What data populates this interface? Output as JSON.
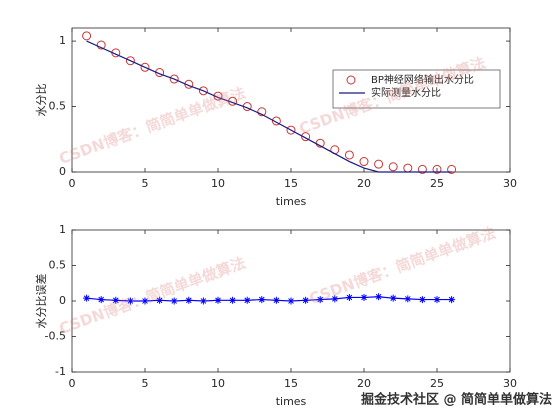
{
  "chart_data": [
    {
      "type": "line",
      "xlabel": "times",
      "ylabel": "水分比",
      "xlim": [
        0,
        30
      ],
      "xticks": [
        0,
        5,
        10,
        15,
        20,
        25,
        30
      ],
      "ylim": [
        0,
        1.1
      ],
      "yticks": [
        0,
        0.5,
        1
      ],
      "grid": false,
      "legend": "northeast",
      "x": [
        1,
        2,
        3,
        4,
        5,
        6,
        7,
        8,
        9,
        10,
        11,
        12,
        13,
        14,
        15,
        16,
        17,
        18,
        19,
        20,
        21,
        22,
        23,
        24,
        25,
        26
      ],
      "series": [
        {
          "name": "BP神经网络输出水分比",
          "color": "#cc3333",
          "style": "circle",
          "values": [
            1.04,
            0.97,
            0.91,
            0.85,
            0.8,
            0.76,
            0.71,
            0.67,
            0.62,
            0.58,
            0.54,
            0.5,
            0.46,
            0.39,
            0.32,
            0.27,
            0.22,
            0.17,
            0.13,
            0.08,
            0.06,
            0.04,
            0.03,
            0.02,
            0.02,
            0.02
          ]
        },
        {
          "name": "实际测量水分比",
          "color": "#1a1a80",
          "style": "line",
          "values": [
            1.0,
            0.95,
            0.9,
            0.85,
            0.8,
            0.75,
            0.71,
            0.66,
            0.62,
            0.57,
            0.53,
            0.49,
            0.44,
            0.38,
            0.32,
            0.26,
            0.2,
            0.14,
            0.08,
            0.03,
            0.0,
            0.0,
            0.0,
            0.0,
            0.0,
            0.0
          ]
        }
      ]
    },
    {
      "type": "line",
      "xlabel": "times",
      "ylabel": "水分比误差",
      "xlim": [
        0,
        30
      ],
      "xticks": [
        0,
        5,
        10,
        15,
        20,
        25,
        30
      ],
      "ylim": [
        -1,
        1
      ],
      "yticks": [
        -1,
        -0.5,
        0,
        0.5,
        1
      ],
      "grid": false,
      "x": [
        1,
        2,
        3,
        4,
        5,
        6,
        7,
        8,
        9,
        10,
        11,
        12,
        13,
        14,
        15,
        16,
        17,
        18,
        19,
        20,
        21,
        22,
        23,
        24,
        25,
        26
      ],
      "series": [
        {
          "color": "#0000ff",
          "style": "line-star",
          "values": [
            0.04,
            0.02,
            0.01,
            0.0,
            0.0,
            0.01,
            0.0,
            0.01,
            0.0,
            0.01,
            0.01,
            0.01,
            0.02,
            0.01,
            0.0,
            0.01,
            0.02,
            0.03,
            0.05,
            0.05,
            0.06,
            0.04,
            0.03,
            0.02,
            0.02,
            0.02
          ]
        }
      ]
    }
  ],
  "watermark": {
    "text": "CSDN博客：简简单单做算法",
    "footer": "掘金技术社区 @ 简简单单做算法"
  }
}
